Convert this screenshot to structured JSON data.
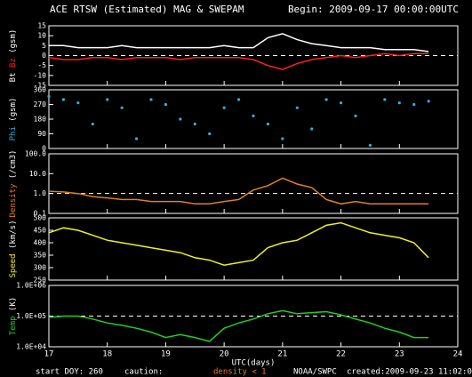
{
  "header": {
    "title": "ACE RTSW (Estimated) MAG & SWEPAM",
    "begin": "Begin: 2009-09-17 00:00:00UTC"
  },
  "footer": {
    "start": "start DOY: 260",
    "caution": "caution:",
    "density_note": "density < 1",
    "agency": "NOAA/SWPC",
    "created": "created:2009-09-23 11:02:02UTC"
  },
  "chart_data": [
    {
      "type": "line",
      "unit": "(gsm)",
      "xlim": [
        17,
        24
      ],
      "xticks": [
        17,
        18,
        19,
        20,
        21,
        22,
        23,
        24
      ],
      "ylim": [
        -15,
        15
      ],
      "yticks": [
        -15,
        -10,
        -5,
        0,
        5,
        10,
        15
      ],
      "hline": 0,
      "x": [
        17,
        17.25,
        17.5,
        17.75,
        18,
        18.25,
        18.5,
        18.75,
        19,
        19.25,
        19.5,
        19.75,
        20,
        20.25,
        20.5,
        20.75,
        21,
        21.25,
        21.5,
        21.75,
        22,
        22.25,
        22.5,
        22.75,
        23,
        23.25,
        23.5
      ],
      "series": [
        {
          "name": "Bt",
          "color": "#ffffff",
          "values": [
            5,
            5,
            4,
            4,
            4,
            5,
            4,
            4,
            4,
            4,
            4,
            4,
            5,
            4,
            4,
            9,
            11,
            8,
            6,
            5,
            4,
            4,
            4,
            3,
            3,
            3,
            2
          ]
        },
        {
          "name": "Bz",
          "color": "#ff2020",
          "values": [
            -1,
            -2,
            -2,
            -1,
            -1,
            -2,
            -1,
            -1,
            -1,
            -2,
            -1,
            -1,
            -1,
            -1,
            -2,
            -5,
            -7,
            -4,
            -2,
            -1,
            0,
            -1,
            0,
            1,
            0,
            1,
            1
          ]
        }
      ]
    },
    {
      "type": "scatter",
      "unit": "(gsm)",
      "xlim": [
        17,
        24
      ],
      "xticks": [
        17,
        18,
        19,
        20,
        21,
        22,
        23,
        24
      ],
      "ylim": [
        0,
        360
      ],
      "yticks": [
        0,
        90,
        180,
        270,
        360
      ],
      "x": [
        17,
        17.25,
        17.5,
        17.75,
        18,
        18.25,
        18.5,
        18.75,
        19,
        19.25,
        19.5,
        19.75,
        20,
        20.25,
        20.5,
        20.75,
        21,
        21.25,
        21.5,
        21.75,
        22,
        22.25,
        22.5,
        22.75,
        23,
        23.25,
        23.5
      ],
      "series": [
        {
          "name": "Phi",
          "color": "#30b0e0",
          "values": [
            320,
            300,
            280,
            150,
            300,
            250,
            60,
            300,
            270,
            180,
            150,
            90,
            250,
            300,
            200,
            150,
            60,
            250,
            120,
            300,
            280,
            200,
            20,
            300,
            280,
            270,
            290
          ]
        }
      ]
    },
    {
      "type": "line",
      "unit": "(/cm3)",
      "ylog": true,
      "xlim": [
        17,
        24
      ],
      "xticks": [
        17,
        18,
        19,
        20,
        21,
        22,
        23,
        24
      ],
      "ylim": [
        0.1,
        100
      ],
      "yticks": [
        0.1,
        {
          "value": 1,
          "label": "1.0"
        },
        {
          "value": 10,
          "label": "10.0"
        },
        {
          "value": 100,
          "label": "100.0"
        }
      ],
      "hline": 1,
      "x": [
        17,
        17.25,
        17.5,
        17.75,
        18,
        18.25,
        18.5,
        18.75,
        19,
        19.25,
        19.5,
        19.75,
        20,
        20.25,
        20.5,
        20.75,
        21,
        21.25,
        21.5,
        21.75,
        22,
        22.25,
        22.5,
        22.75,
        23,
        23.25,
        23.5
      ],
      "series": [
        {
          "name": "Density",
          "color": "#e08020",
          "values": [
            1.3,
            1.2,
            1.0,
            0.7,
            0.6,
            0.5,
            0.5,
            0.4,
            0.4,
            0.4,
            0.3,
            0.3,
            0.4,
            0.5,
            1.5,
            2.5,
            6,
            3,
            2,
            0.5,
            0.3,
            0.4,
            0.3,
            0.3,
            0.3,
            0.3,
            0.3
          ]
        }
      ]
    },
    {
      "type": "line",
      "unit": "(km/s)",
      "xlim": [
        17,
        24
      ],
      "xticks": [
        17,
        18,
        19,
        20,
        21,
        22,
        23,
        24
      ],
      "ylim": [
        250,
        500
      ],
      "yticks": [
        250,
        300,
        350,
        400,
        450,
        500
      ],
      "x": [
        17,
        17.25,
        17.5,
        17.75,
        18,
        18.25,
        18.5,
        18.75,
        19,
        19.25,
        19.5,
        19.75,
        20,
        20.25,
        20.5,
        20.75,
        21,
        21.25,
        21.5,
        21.75,
        22,
        22.25,
        22.5,
        22.75,
        23,
        23.25,
        23.5
      ],
      "series": [
        {
          "name": "Speed",
          "color": "#f0f020",
          "values": [
            440,
            460,
            450,
            430,
            410,
            400,
            390,
            380,
            370,
            360,
            340,
            330,
            310,
            320,
            330,
            380,
            400,
            410,
            440,
            470,
            480,
            460,
            440,
            430,
            420,
            400,
            340
          ]
        }
      ]
    },
    {
      "type": "line",
      "unit": "(K)",
      "ylog": true,
      "xlim": [
        17,
        24
      ],
      "xticks": [
        17,
        18,
        19,
        20,
        21,
        22,
        23,
        24
      ],
      "xlabel": "UTC(days)",
      "ylim": [
        10000,
        1000000
      ],
      "yticks": [
        {
          "value": 10000,
          "label": "1.0E+04"
        },
        {
          "value": 100000,
          "label": "1.0E+05"
        },
        {
          "value": 1000000,
          "label": "1.0E+06"
        }
      ],
      "hline": 100000,
      "x": [
        17,
        17.25,
        17.5,
        17.75,
        18,
        18.25,
        18.5,
        18.75,
        19,
        19.25,
        19.5,
        19.75,
        20,
        20.25,
        20.5,
        20.75,
        21,
        21.25,
        21.5,
        21.75,
        22,
        22.25,
        22.5,
        22.75,
        23,
        23.25,
        23.5
      ],
      "series": [
        {
          "name": "Temp",
          "color": "#20d020",
          "values": [
            90000,
            100000,
            100000,
            80000,
            60000,
            50000,
            40000,
            30000,
            20000,
            25000,
            20000,
            15000,
            40000,
            60000,
            80000,
            120000,
            150000,
            120000,
            130000,
            140000,
            110000,
            80000,
            60000,
            40000,
            30000,
            20000,
            20000
          ]
        }
      ]
    }
  ]
}
